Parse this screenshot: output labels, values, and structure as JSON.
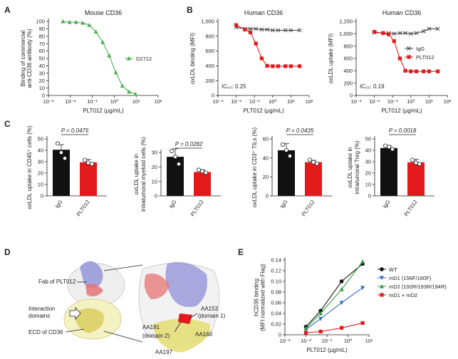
{
  "panels": {
    "A": "A",
    "B": "B",
    "C": "C",
    "D": "D",
    "E": "E"
  },
  "colors": {
    "green": "#4caf50",
    "red": "#e31a1c",
    "black": "#111111",
    "blue": "#3b6fc4",
    "gray": "#666666"
  },
  "chart_data": [
    {
      "id": "A",
      "type": "line",
      "title": "Mouse CD36",
      "xlabel": "PLT012 (µg/mL)",
      "ylabel": [
        "Binding of commercial",
        "anti-CD36 antibody (%)"
      ],
      "xscale": "log",
      "xlim": [
        0.001,
        100
      ],
      "ylim": [
        0,
        100
      ],
      "xticks": [
        "10⁻³",
        "10⁻²",
        "10⁻¹",
        "10⁰",
        "10¹",
        "10²"
      ],
      "yticks": [
        "0",
        "10",
        "20",
        "30",
        "40",
        "50",
        "60",
        "70",
        "80",
        "90",
        "100"
      ],
      "series": [
        {
          "name": "D2712",
          "color": "#4caf50",
          "marker": "triangle",
          "x": [
            0.00457,
            0.00914,
            0.0183,
            0.0366,
            0.0731,
            0.146,
            0.293,
            0.585,
            1.17,
            2.34,
            4.68,
            9.36
          ],
          "y": [
            100,
            99,
            99,
            98,
            95,
            86,
            72,
            54,
            31,
            13,
            5,
            2
          ]
        }
      ]
    },
    {
      "id": "B1",
      "type": "line",
      "title": "Human CD36",
      "xlabel": "PLT012 (µg/mL)",
      "ylabel": "oxLDL binding (MFI)",
      "xscale": "log",
      "xlim": [
        0.001,
        100
      ],
      "ylim": [
        0,
        1000
      ],
      "xticks": [
        "10⁻³",
        "10⁻²",
        "10⁻¹",
        "10⁰",
        "10¹",
        "10²"
      ],
      "yticks": [
        "0",
        "200",
        "400",
        "600",
        "800",
        "1,000"
      ],
      "annotation": "IC₅₀: 0.25",
      "series": [
        {
          "name": "IgG",
          "color": "#444444",
          "marker": "x",
          "x": [
            0.01,
            0.03,
            0.06,
            0.12,
            0.25,
            0.5,
            1,
            2,
            5,
            10,
            30
          ],
          "y": [
            920,
            900,
            900,
            900,
            890,
            890,
            880,
            880,
            880,
            880,
            880
          ]
        },
        {
          "name": "PLT012",
          "color": "#e31a1c",
          "marker": "square",
          "x": [
            0.01,
            0.03,
            0.06,
            0.12,
            0.25,
            0.5,
            1,
            2,
            5,
            10,
            30
          ],
          "y": [
            950,
            890,
            850,
            700,
            500,
            400,
            395,
            395,
            395,
            395,
            395
          ]
        }
      ]
    },
    {
      "id": "B2",
      "type": "line",
      "title": "Human CD36",
      "xlabel": "PLT012 (µg/mL)",
      "ylabel": "oxLDL uptake (MFI)",
      "xscale": "log",
      "xlim": [
        0.001,
        100
      ],
      "ylim": [
        0,
        1200
      ],
      "xticks": [
        "10⁻³",
        "10⁻²",
        "10⁻¹",
        "10⁰",
        "10¹",
        "10²"
      ],
      "yticks": [
        "0",
        "200",
        "400",
        "600",
        "800",
        "1,000",
        "1,200"
      ],
      "annotation": "IC₅₀: 0.19",
      "legend": [
        "IgG",
        "PLT012"
      ],
      "series": [
        {
          "name": "IgG",
          "color": "#444444",
          "marker": "x",
          "x": [
            0.01,
            0.03,
            0.06,
            0.12,
            0.25,
            0.5,
            1,
            2,
            5,
            10,
            30
          ],
          "y": [
            1020,
            1010,
            1010,
            1000,
            1010,
            1010,
            1000,
            1010,
            1040,
            1080,
            1080
          ]
        },
        {
          "name": "PLT012",
          "color": "#e31a1c",
          "marker": "square",
          "x": [
            0.01,
            0.03,
            0.06,
            0.12,
            0.25,
            0.5,
            1,
            2,
            5,
            10,
            30
          ],
          "y": [
            1030,
            1010,
            990,
            880,
            600,
            400,
            390,
            390,
            390,
            390,
            390
          ]
        }
      ]
    },
    {
      "id": "C1",
      "type": "bar",
      "categories": [
        "IgG",
        "PLT012"
      ],
      "ylabel": "oxLDL uptake in CD45⁺ cells (%)",
      "ylim": [
        0,
        50
      ],
      "yticks": [
        "0",
        "10",
        "20",
        "30",
        "40",
        "50"
      ],
      "values": [
        40.5,
        29.5
      ],
      "errors": [
        4.5,
        2.5
      ],
      "pvalue": "P = 0.0475",
      "points": [
        [
          46,
          38,
          33
        ],
        [
          31.5,
          29,
          28
        ]
      ]
    },
    {
      "id": "C2",
      "type": "bar",
      "categories": [
        "IgG",
        "PLT012"
      ],
      "ylabel": [
        "oxLDL uptake in",
        "intratumoral myeloid cells (%)"
      ],
      "ylim": [
        0,
        30
      ],
      "yticks": [
        "0",
        "10",
        "20",
        "30"
      ],
      "values": [
        27,
        16.5
      ],
      "errors": [
        5.5,
        1.5
      ],
      "pvalue": "P = 0.0282",
      "points": [
        [
          31,
          27,
          22
        ],
        [
          18,
          17,
          16
        ]
      ]
    },
    {
      "id": "C3",
      "type": "bar",
      "categories": [
        "IgG",
        "PLT012"
      ],
      "ylabel": "oxLDL uptake in CD3⁺ TILs (%)",
      "ylim": [
        0,
        60
      ],
      "yticks": [
        "0",
        "20",
        "40",
        "60"
      ],
      "values": [
        48,
        35.5
      ],
      "errors": [
        7,
        2
      ],
      "pvalue": "P = 0.0435",
      "points": [
        [
          54,
          48,
          42
        ],
        [
          38,
          35.5,
          34
        ]
      ]
    },
    {
      "id": "C4",
      "type": "bar",
      "categories": [
        "IgG",
        "PLT012"
      ],
      "ylabel": [
        "oxLDL uptake in",
        "intratumoral Treg (%)"
      ],
      "ylim": [
        0,
        50
      ],
      "yticks": [
        "0",
        "10",
        "20",
        "30",
        "40",
        "50"
      ],
      "values": [
        42,
        29.5
      ],
      "errors": [
        2,
        2.5
      ],
      "pvalue": "P = 0.0018",
      "points": [
        [
          44,
          43,
          41
        ],
        [
          31.5,
          29,
          28
        ]
      ]
    },
    {
      "id": "E",
      "type": "line",
      "xlabel": "PLT012 (µg/mL)",
      "ylabel": [
        "hCD36 binding",
        "(MFI normalized with Flag)"
      ],
      "xscale": "log",
      "xlim": [
        0.001,
        10
      ],
      "ylim": [
        0,
        0.14
      ],
      "xticks": [
        "10⁻³",
        "10⁻²",
        "10⁻¹",
        "10⁰",
        "10¹"
      ],
      "yticks": [
        "0",
        "0.02",
        "0.04",
        "0.06",
        "0.08",
        "0.10",
        "0.12",
        "0.14"
      ],
      "series": [
        {
          "name": "WT",
          "color": "#111111",
          "marker": "circle",
          "x": [
            0.01,
            0.05,
            0.5,
            5
          ],
          "y": [
            0.015,
            0.045,
            0.1,
            0.133
          ]
        },
        {
          "name": "mD1 (156F/160F)",
          "color": "#3b6fc4",
          "marker": "tri-down",
          "x": [
            0.01,
            0.05,
            0.5,
            5
          ],
          "y": [
            0.01,
            0.03,
            0.06,
            0.088
          ]
        },
        {
          "name": "mD2 (192R/193R/194R)",
          "color": "#2e9e3e",
          "marker": "triangle",
          "x": [
            0.01,
            0.05,
            0.5,
            5
          ],
          "y": [
            0.012,
            0.04,
            0.085,
            0.137
          ]
        },
        {
          "name": "mD1 + mD2",
          "color": "#e31a1c",
          "marker": "square",
          "x": [
            0.01,
            0.05,
            0.5,
            5
          ],
          "y": [
            0.004,
            0.006,
            0.013,
            0.022
          ]
        }
      ]
    }
  ],
  "structure": {
    "labels": {
      "fab": "Fab of PLT012",
      "interaction": "Interaction",
      "domains": "domains",
      "ecd": "ECD of CD36",
      "aa153": "AA153",
      "domain1": "(domain 1)",
      "aa191": "AA191",
      "domain2": "(domain 2)",
      "aa160": "AA160",
      "aa197": "AA197"
    }
  }
}
